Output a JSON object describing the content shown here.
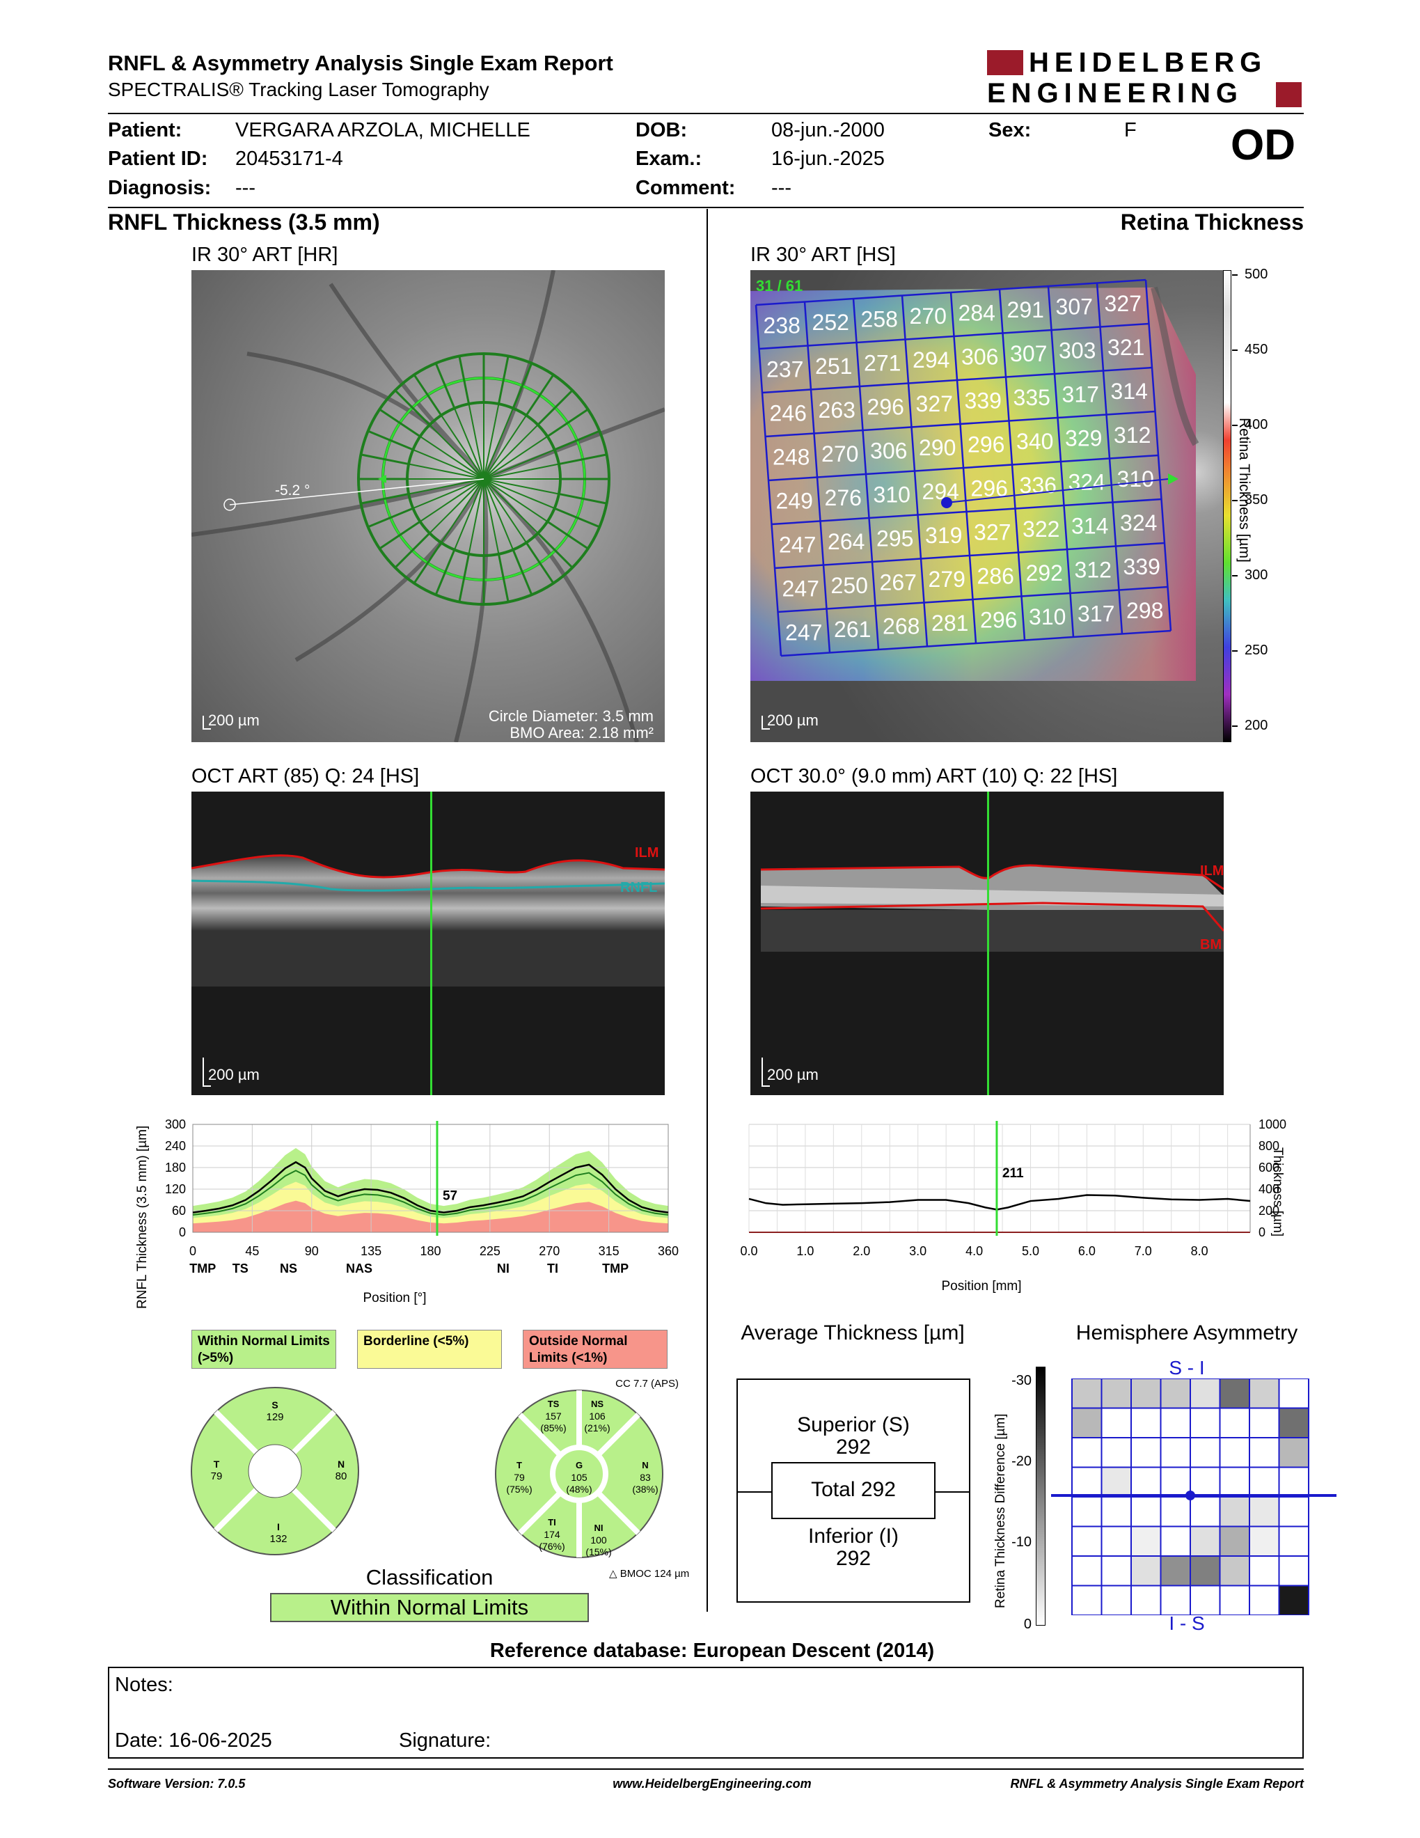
{
  "header": {
    "title": "RNFL & Asymmetry Analysis Single Exam Report",
    "subtitle": "SPECTRALIS® Tracking Laser Tomography",
    "logo_line1": "HEIDELBERG",
    "logo_line2": "ENGINEERING",
    "eye": "OD"
  },
  "patient": {
    "patient_label": "Patient:",
    "patient_value": "VERGARA ARZOLA, MICHELLE",
    "id_label": "Patient ID:",
    "id_value": "20453171-4",
    "diag_label": "Diagnosis:",
    "diag_value": "---",
    "dob_label": "DOB:",
    "dob_value": "08-jun.-2000",
    "exam_label": "Exam.:",
    "exam_value": "16-jun.-2025",
    "comment_label": "Comment:",
    "comment_value": "---",
    "sex_label": "Sex:",
    "sex_value": "F"
  },
  "left": {
    "section_title": "RNFL Thickness (3.5 mm)",
    "ir_title": "IR 30° ART [HR]",
    "angle": "-5.2 °",
    "scale": "200 µm",
    "circle_diameter": "Circle Diameter: 3.5 mm",
    "bmo_area": "BMO Area: 2.18 mm²",
    "oct_title": "OCT ART (85) Q: 24 [HS]",
    "ilm": "ILM",
    "rnfl": "RNFL",
    "oct_scale": "200 µm"
  },
  "right": {
    "section_title": "Retina Thickness",
    "ir_title": "IR 30° ART [HS]",
    "counter": "31 / 61",
    "scale": "200 µm",
    "colorbar_ticks": [
      "500",
      "450",
      "400",
      "350",
      "300",
      "250",
      "200"
    ],
    "colorbar_label": "Retina Thickness [µm]",
    "oct_title": "OCT 30.0° (9.0 mm) ART (10) Q: 22 [HS]",
    "ilm": "ILM",
    "bm": "BM",
    "oct_scale": "200 µm"
  },
  "grid_values": [
    [
      "238",
      "252",
      "258",
      "270",
      "284",
      "291",
      "307",
      "327"
    ],
    [
      "237",
      "251",
      "271",
      "294",
      "306",
      "307",
      "303",
      "321"
    ],
    [
      "246",
      "263",
      "296",
      "327",
      "339",
      "335",
      "317",
      "314"
    ],
    [
      "248",
      "270",
      "306",
      "290",
      "296",
      "340",
      "329",
      "312"
    ],
    [
      "249",
      "276",
      "310",
      "294",
      "296",
      "336",
      "324",
      "310"
    ],
    [
      "247",
      "264",
      "295",
      "319",
      "327",
      "322",
      "314",
      "324"
    ],
    [
      "247",
      "250",
      "267",
      "279",
      "286",
      "292",
      "312",
      "339"
    ],
    [
      "247",
      "261",
      "268",
      "281",
      "296",
      "310",
      "317",
      "298"
    ]
  ],
  "chart_data": [
    {
      "type": "line",
      "ylabel": "RNFL Thickness (3.5 mm) [µm]",
      "xlabel": "Position [°]",
      "ylim": [
        0,
        300
      ],
      "xlim": [
        0,
        360
      ],
      "yticks": [
        "300",
        "240",
        "180",
        "120",
        "60",
        "0"
      ],
      "xticks": [
        "0",
        "45",
        "90",
        "135",
        "180",
        "225",
        "270",
        "315",
        "360"
      ],
      "sector_labels": [
        "TMP",
        "TS",
        "NS",
        "NAS",
        "NI",
        "TI",
        "TMP"
      ],
      "cursor_value": "57",
      "cursor_x": 185,
      "series": [
        {
          "x": [
            0,
            10,
            20,
            30,
            40,
            50,
            60,
            70,
            78,
            85,
            90,
            100,
            110,
            120,
            130,
            140,
            150,
            160,
            170,
            180,
            190,
            200,
            210,
            220,
            230,
            240,
            250,
            260,
            270,
            280,
            290,
            300,
            310,
            320,
            330,
            340,
            350,
            360
          ],
          "values": [
            55,
            60,
            66,
            75,
            90,
            115,
            145,
            178,
            195,
            180,
            150,
            115,
            100,
            112,
            120,
            118,
            110,
            95,
            75,
            60,
            55,
            60,
            70,
            75,
            82,
            90,
            100,
            118,
            140,
            160,
            180,
            188,
            160,
            120,
            90,
            70,
            60,
            55
          ]
        }
      ]
    },
    {
      "type": "line",
      "ylabel": "Thickness [µm]",
      "xlabel": "Position [mm]",
      "ylim": [
        0,
        1000
      ],
      "xlim": [
        0,
        8.9
      ],
      "yticks": [
        "1000",
        "800",
        "600",
        "400",
        "200",
        "0"
      ],
      "xticks": [
        "0.0",
        "1.0",
        "2.0",
        "3.0",
        "4.0",
        "5.0",
        "6.0",
        "7.0",
        "8.0"
      ],
      "cursor_value": "211",
      "cursor_x": 4.4,
      "series": [
        {
          "x": [
            0,
            0.3,
            0.6,
            1,
            1.5,
            2,
            2.5,
            3,
            3.5,
            3.9,
            4.2,
            4.4,
            4.6,
            5,
            5.5,
            6,
            6.5,
            7,
            7.5,
            8,
            8.5,
            8.9
          ],
          "values": [
            310,
            270,
            255,
            260,
            265,
            270,
            280,
            300,
            300,
            270,
            230,
            211,
            230,
            290,
            310,
            345,
            340,
            320,
            305,
            300,
            310,
            290
          ]
        }
      ]
    }
  ],
  "legend": {
    "wnl": "Within Normal Limits (>5%)",
    "borderline": "Borderline (<5%)",
    "onl": "Outside Normal Limits (<1%)"
  },
  "pie1": {
    "S": "129",
    "T": "79",
    "N": "80",
    "I": "132",
    "s_label": "S",
    "t_label": "T",
    "n_label": "N",
    "i_label": "I"
  },
  "pie2": {
    "cc": "CC 7.7 (APS)",
    "TS": [
      "TS",
      "157",
      "(85%)"
    ],
    "NS": [
      "NS",
      "106",
      "(21%)"
    ],
    "T": [
      "T",
      "79",
      "(75%)"
    ],
    "G": [
      "G",
      "105",
      "(48%)"
    ],
    "N": [
      "N",
      "83",
      "(38%)"
    ],
    "TI": [
      "TI",
      "174",
      "(76%)"
    ],
    "NI": [
      "NI",
      "100",
      "(15%)"
    ],
    "bmoc": "BMOC 124 µm"
  },
  "classification": {
    "label": "Classification",
    "value": "Within Normal Limits"
  },
  "avg": {
    "title": "Average Thickness [µm]",
    "superior_label": "Superior (S)",
    "superior": "292",
    "total": "Total 292",
    "inferior_label": "Inferior (I)",
    "inferior": "292"
  },
  "hemi": {
    "title": "Hemisphere Asymmetry",
    "top": "S - I",
    "bottom": "I - S",
    "axis_label": "Retina Thickness Difference [µm]",
    "ticks": [
      "-30",
      "-20",
      "-10",
      "0"
    ]
  },
  "reference": "Reference database: European Descent (2014)",
  "notes": {
    "label": "Notes:",
    "date": "Date: 16-06-2025",
    "signature": "Signature:"
  },
  "footer": {
    "software": "Software Version: 7.0.5",
    "url": "www.HeidelbergEngineering.com",
    "report": "RNFL & Asymmetry Analysis Single Exam Report"
  },
  "colors": {
    "green": "#b8f08a",
    "yellow": "#fafa96",
    "red": "#f7958a",
    "brand": "#9b1b2a",
    "grid_blue": "#1a1acc"
  }
}
